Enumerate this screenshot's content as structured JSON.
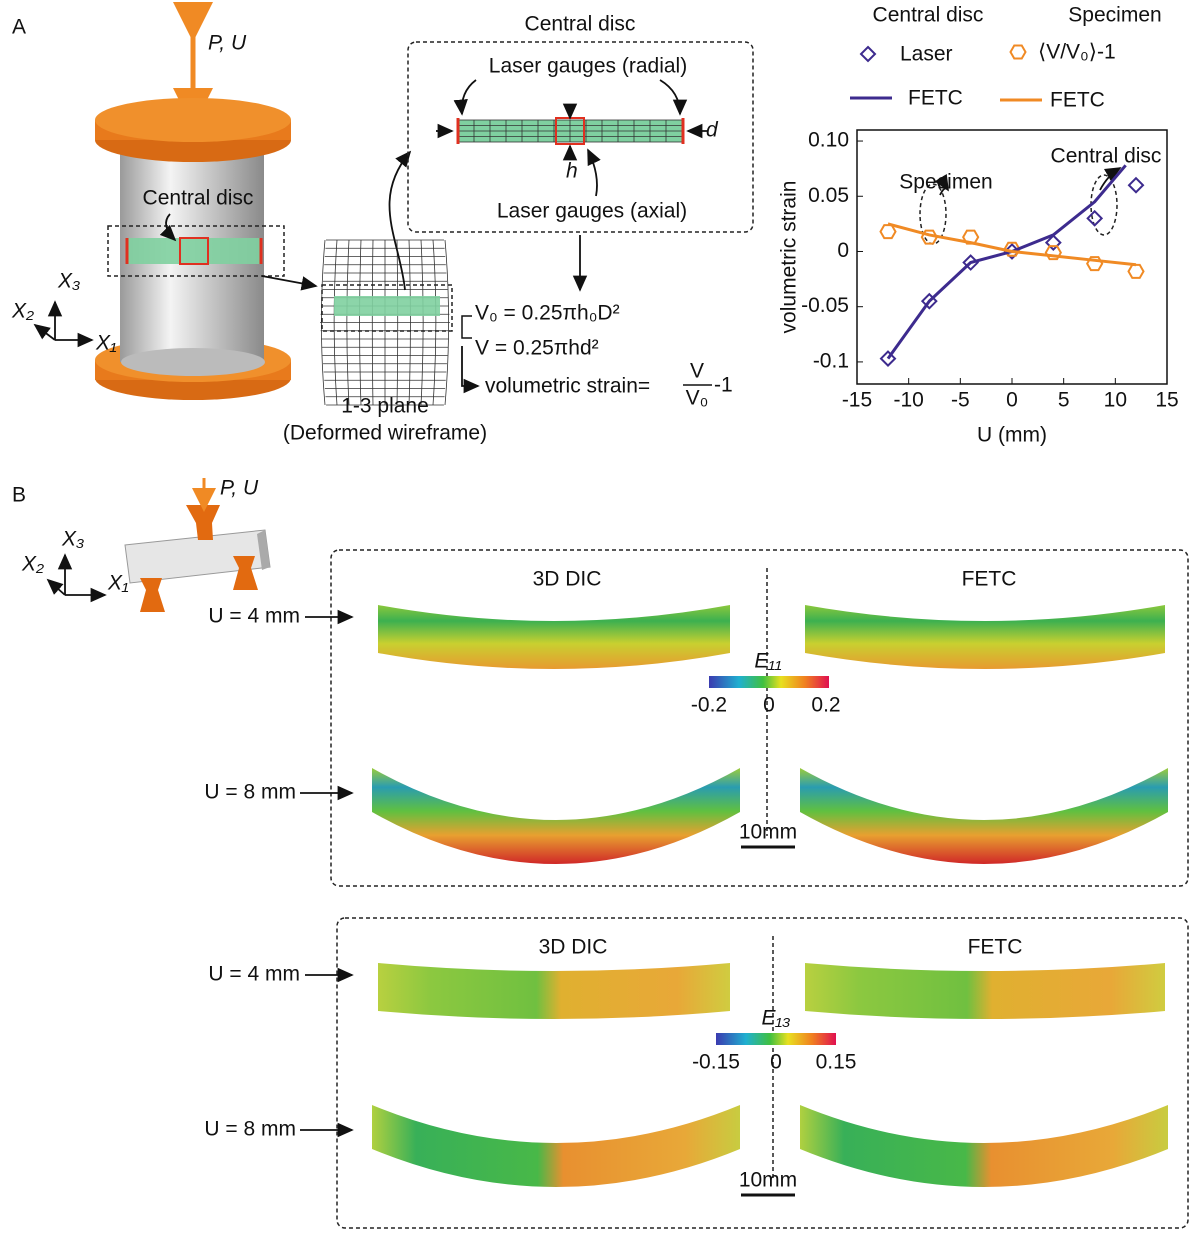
{
  "panel_a": {
    "label": "A",
    "load": "P, U",
    "disc_label": "Central disc",
    "axis_x3": "X₃",
    "axis_x2": "X₂",
    "axis_x1": "X₁",
    "plane": "1-3 plane",
    "plane_sub": "(Deformed wireframe)",
    "box_title": "Central disc",
    "radial": "Laser gauges (radial)",
    "axial": "Laser gauges (axial)",
    "d": "d",
    "h": "h",
    "formula_v0": "V₀ = 0.25πh₀D²",
    "formula_v": "V = 0.25πhd²",
    "formula_strain": "volumetric strain=",
    "frac_num": "V",
    "frac_den": "V₀",
    "frac_tail": "-1"
  },
  "chart_data": {
    "type": "line",
    "xlabel": "U (mm)",
    "ylabel": "volumetric strain",
    "legend_groups": [
      "Central disc",
      "Specimen"
    ],
    "xlim": [
      -15,
      15
    ],
    "xticks": [
      -15,
      -10,
      -5,
      0,
      5,
      10,
      15
    ],
    "ylim": [
      -0.12,
      0.11
    ],
    "yticks": [
      {
        "value": -0.1,
        "label": "-0.1"
      },
      -0.05,
      0,
      0.05,
      {
        "value": 0.1,
        "label": "0.10"
      }
    ],
    "annotations": [
      "Specimen",
      "Central disc"
    ],
    "series": [
      {
        "name": "Laser",
        "color": "#3d2b8e",
        "marker": "diamond",
        "x": [
          -12,
          -8,
          -4,
          0,
          4,
          8,
          12
        ],
        "values": [
          -0.097,
          -0.045,
          -0.01,
          0,
          0.008,
          0.03,
          0.06
        ]
      },
      {
        "name": "⟨V/V₀⟩-1",
        "color": "#f08a24",
        "marker": "hexagon",
        "x": [
          -12,
          -8,
          -4,
          0,
          4,
          8,
          12
        ],
        "values": [
          0.018,
          0.013,
          0.013,
          0.002,
          -0.001,
          -0.011,
          -0.018
        ]
      },
      {
        "name": "FETC",
        "color": "#3d2b8e",
        "marker": "line",
        "x": [
          -12,
          -8,
          -4,
          0,
          4,
          8,
          11
        ],
        "values": [
          -0.097,
          -0.045,
          -0.01,
          0,
          0.015,
          0.045,
          0.078
        ]
      },
      {
        "name": "FETC",
        "color": "#f08a24",
        "marker": "line",
        "x": [
          -12,
          -8,
          -4,
          0,
          4,
          8,
          12
        ],
        "values": [
          0.025,
          0.015,
          0.008,
          0,
          -0.004,
          -0.008,
          -0.012
        ]
      }
    ]
  },
  "panel_b": {
    "label": "B",
    "load": "P, U",
    "axis_x3": "X₃",
    "axis_x2": "X₂",
    "axis_x1": "X₁",
    "e11": {
      "method_left": "3D DIC",
      "method_right": "FETC",
      "row1": "U = 4 mm",
      "row2": "U = 8 mm",
      "cbar_title": "E₁₁",
      "cbar_ticks": [
        "-0.2",
        "0",
        "0.2"
      ],
      "scale": "10mm"
    },
    "e13": {
      "method_left": "3D DIC",
      "method_right": "FETC",
      "row1": "U = 4 mm",
      "row2": "U = 8 mm",
      "cbar_title": "E₁₃",
      "cbar_ticks": [
        "-0.15",
        "0",
        "0.15"
      ],
      "scale": "10mm"
    }
  }
}
